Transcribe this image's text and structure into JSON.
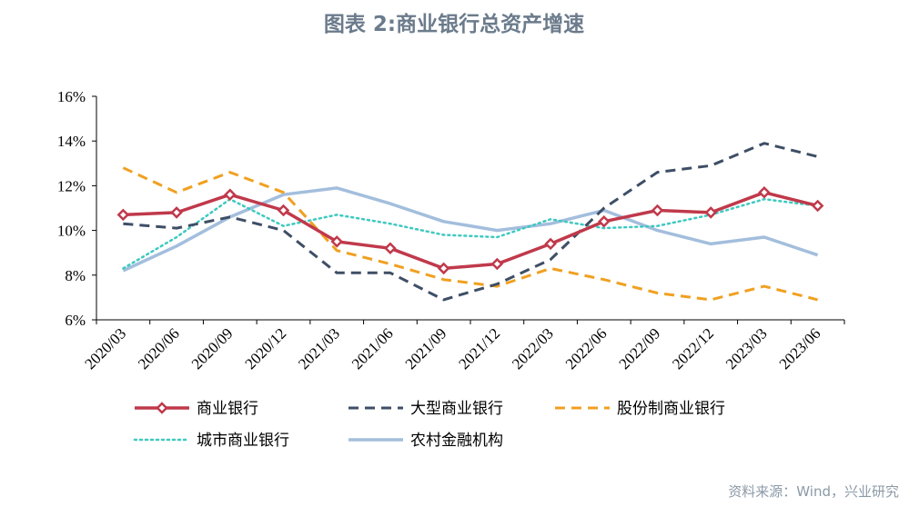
{
  "title": "图表 2:商业银行总资产增速",
  "source": "资料来源：Wind，兴业研究",
  "colors": {
    "title": "#6b7b8c",
    "source": "#8b9aa7",
    "axis": "#000000",
    "tick_label": "#000000"
  },
  "chart_data": {
    "type": "line",
    "title": "图表 2:商业银行总资产增速",
    "xlabel": "",
    "ylabel": "",
    "categories": [
      "2020/03",
      "2020/06",
      "2020/09",
      "2020/12",
      "2021/03",
      "2021/06",
      "2021/09",
      "2021/12",
      "2022/03",
      "2022/06",
      "2022/09",
      "2022/12",
      "2023/03",
      "2023/06"
    ],
    "y_ticks": [
      "6%",
      "8%",
      "10%",
      "12%",
      "14%",
      "16%"
    ],
    "ylim": [
      6,
      16
    ],
    "grid": false,
    "legend_position": "bottom",
    "series": [
      {
        "name": "商业银行",
        "color": "#c0394b",
        "style": "solid-diamond",
        "values": [
          10.7,
          10.8,
          11.6,
          10.9,
          9.5,
          9.2,
          8.3,
          8.5,
          9.4,
          10.4,
          10.9,
          10.8,
          11.7,
          11.1
        ]
      },
      {
        "name": "大型商业银行",
        "color": "#3e4e66",
        "style": "dashed",
        "values": [
          10.3,
          10.1,
          10.6,
          10.0,
          8.1,
          8.1,
          6.9,
          7.6,
          8.7,
          11.0,
          12.6,
          12.9,
          13.9,
          13.3
        ]
      },
      {
        "name": "股份制商业银行",
        "color": "#f0a020",
        "style": "dashed",
        "values": [
          12.8,
          11.7,
          12.6,
          11.7,
          9.1,
          8.5,
          7.8,
          7.5,
          8.3,
          7.8,
          7.2,
          6.9,
          7.5,
          6.9
        ]
      },
      {
        "name": "城市商业银行",
        "color": "#3ec9c0",
        "style": "dotted",
        "values": [
          8.3,
          9.7,
          11.4,
          10.2,
          10.7,
          10.3,
          9.8,
          9.7,
          10.5,
          10.1,
          10.2,
          10.7,
          11.4,
          11.1
        ]
      },
      {
        "name": "农村金融机构",
        "color": "#a3bedd",
        "style": "solid",
        "values": [
          8.2,
          9.3,
          10.6,
          11.6,
          11.9,
          11.2,
          10.4,
          10.0,
          10.3,
          10.9,
          10.0,
          9.4,
          9.7,
          8.9
        ]
      }
    ]
  }
}
